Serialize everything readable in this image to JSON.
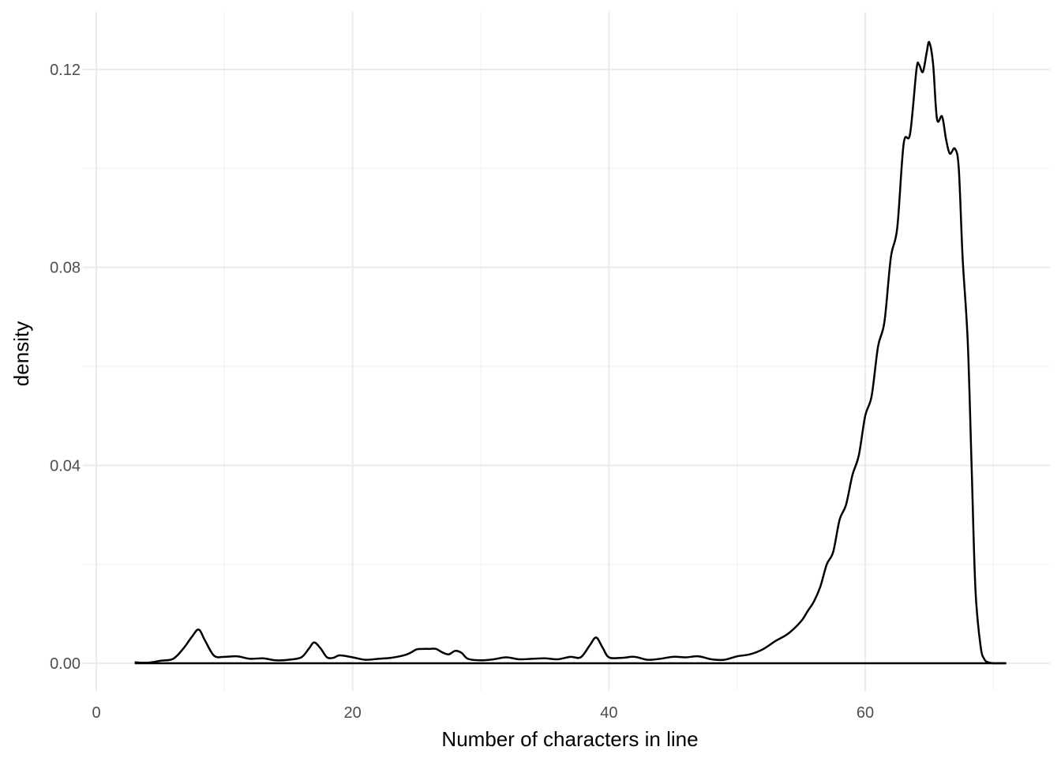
{
  "chart_data": {
    "type": "line",
    "title": "",
    "xlabel": "Number of characters in line",
    "ylabel": "density",
    "xlim": [
      0,
      72
    ],
    "ylim": [
      -0.005,
      0.1265
    ],
    "x_ticks": [
      0,
      20,
      40,
      60
    ],
    "x_tick_labels": [
      "0",
      "20",
      "40",
      "60"
    ],
    "y_ticks": [
      0,
      0.04,
      0.08,
      0.12
    ],
    "y_tick_labels": [
      "0.00",
      "0.04",
      "0.08",
      "0.12"
    ],
    "grid": true,
    "legend": "none",
    "line_color": "#000000",
    "series": [
      {
        "x": [
          3,
          4,
          5,
          6,
          6.8,
          7.5,
          8,
          8.5,
          9.2,
          10,
          11,
          12,
          13,
          14,
          15,
          16,
          16.6,
          17,
          17.5,
          18,
          18.5,
          19,
          20,
          21,
          22,
          23,
          24,
          24.5,
          25,
          25.5,
          26,
          26.5,
          27,
          27.5,
          28,
          28.5,
          29,
          30,
          31,
          32,
          33,
          34,
          35,
          36,
          37,
          37.8,
          38.5,
          39,
          39.5,
          40,
          41,
          42,
          43,
          44,
          45,
          46,
          47,
          48,
          49,
          50,
          51,
          52,
          53,
          54,
          55,
          55.5,
          56,
          56.5,
          57,
          57.5,
          58,
          58.5,
          59,
          59.5,
          60,
          60.5,
          61,
          61.5,
          62,
          62.5,
          63,
          63.5,
          64,
          64.2,
          64.5,
          64.8,
          65,
          65.3,
          65.6,
          66,
          66.3,
          66.6,
          67,
          67.3,
          67.6,
          68,
          68.3,
          68.6,
          69,
          69.3,
          69.6,
          70,
          70.5,
          71
        ],
        "y": [
          0.0002,
          0.0001,
          0.0005,
          0.0009,
          0.003,
          0.0055,
          0.0068,
          0.0045,
          0.0015,
          0.0013,
          0.0014,
          0.0009,
          0.001,
          0.0006,
          0.0007,
          0.0012,
          0.003,
          0.0042,
          0.003,
          0.0012,
          0.0011,
          0.0016,
          0.0012,
          0.0007,
          0.0009,
          0.0011,
          0.0016,
          0.0021,
          0.0028,
          0.0029,
          0.0029,
          0.0029,
          0.0022,
          0.0018,
          0.0025,
          0.0021,
          0.0009,
          0.0006,
          0.0008,
          0.0012,
          0.0008,
          0.0009,
          0.001,
          0.0008,
          0.0013,
          0.0012,
          0.0036,
          0.0052,
          0.0032,
          0.0012,
          0.0011,
          0.0013,
          0.0007,
          0.0009,
          0.0013,
          0.0012,
          0.0014,
          0.0008,
          0.0007,
          0.0014,
          0.0018,
          0.0028,
          0.0045,
          0.006,
          0.0085,
          0.0105,
          0.0125,
          0.0155,
          0.02,
          0.0225,
          0.029,
          0.032,
          0.038,
          0.042,
          0.05,
          0.054,
          0.064,
          0.069,
          0.082,
          0.088,
          0.105,
          0.107,
          0.12,
          0.121,
          0.1195,
          0.1235,
          0.1255,
          0.121,
          0.11,
          0.1105,
          0.106,
          0.103,
          0.104,
          0.1,
          0.082,
          0.065,
          0.04,
          0.015,
          0.0035,
          0.0008,
          0.0002,
          0,
          0,
          0
        ]
      }
    ]
  }
}
